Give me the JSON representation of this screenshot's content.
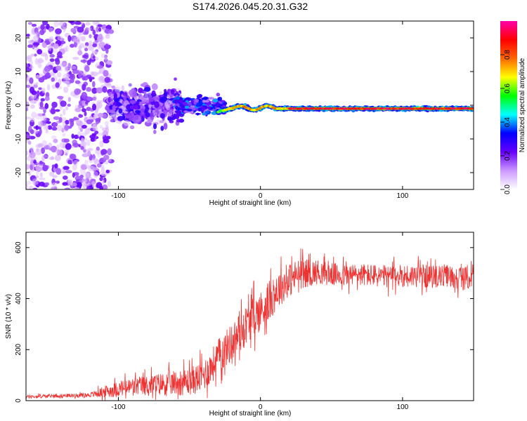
{
  "title": "S174.2026.045.20.31.G32",
  "chart_data": [
    {
      "type": "heatmap",
      "title": "S174.2026.045.20.31.G32",
      "xlabel": "Height of straight line (km)",
      "ylabel": "Frequency (Hz)",
      "xlim": [
        -165,
        150
      ],
      "ylim": [
        -25,
        25
      ],
      "xticks": [
        -100,
        0,
        100
      ],
      "yticks": [
        -20,
        -10,
        0,
        10,
        20
      ],
      "colorbar": {
        "label": "Normalized spectral amplitude",
        "range": [
          0,
          1
        ],
        "ticks": [
          "0.0",
          "0.2",
          "0.4",
          "0.6",
          "0.8"
        ],
        "colors": [
          "#ffffff",
          "#cc99ff",
          "#6600ff",
          "#0000ff",
          "#00ffff",
          "#00ff00",
          "#ffff00",
          "#ff6600",
          "#ff0000",
          "#ff00aa"
        ]
      },
      "regions": [
        {
          "x_range": [
            -165,
            -120
          ],
          "freq_spread_hz": 25,
          "amplitude": "0.1-0.3",
          "description": "scattered noise"
        },
        {
          "x_range": [
            -120,
            -55
          ],
          "freq_spread_hz": 8,
          "amplitude": "0.2-0.4"
        },
        {
          "x_range": [
            -55,
            -25
          ],
          "freq_spread_hz": 4,
          "amplitude": "0.3-0.5"
        },
        {
          "x_range": [
            -25,
            150
          ],
          "freq_center_hz": -1,
          "freq_spread_hz": 1.5,
          "amplitude": "0.8-1.0",
          "description": "narrow coherent band"
        }
      ]
    },
    {
      "type": "line",
      "title": "",
      "xlabel": "Height of straight line (km)",
      "ylabel": "SNR (10 * v/v)",
      "xlim": [
        -165,
        150
      ],
      "ylim": [
        0,
        660
      ],
      "xticks": [
        -100,
        0,
        100
      ],
      "yticks": [
        0,
        200,
        400,
        600
      ],
      "series": [
        {
          "name": "SNR",
          "color": "#ee3333",
          "x": [
            -165,
            -150,
            -135,
            -120,
            -110,
            -100,
            -90,
            -80,
            -70,
            -60,
            -50,
            -45,
            -40,
            -35,
            -30,
            -25,
            -20,
            -15,
            -10,
            -5,
            0,
            5,
            10,
            15,
            20,
            25,
            30,
            35,
            40,
            50,
            60,
            70,
            80,
            90,
            100,
            110,
            120,
            130,
            140,
            150
          ],
          "values": [
            15,
            18,
            20,
            22,
            35,
            45,
            55,
            60,
            65,
            70,
            75,
            85,
            100,
            130,
            170,
            200,
            230,
            260,
            300,
            330,
            350,
            380,
            420,
            450,
            470,
            490,
            500,
            500,
            505,
            495,
            490,
            495,
            490,
            485,
            490,
            490,
            485,
            490,
            480,
            480
          ],
          "noise_amplitude": [
            8,
            8,
            8,
            10,
            25,
            35,
            40,
            45,
            50,
            55,
            60,
            65,
            70,
            75,
            80,
            80,
            85,
            85,
            85,
            90,
            90,
            90,
            85,
            80,
            75,
            70,
            65,
            60,
            55,
            50,
            50,
            50,
            50,
            50,
            50,
            50,
            50,
            50,
            50,
            50
          ]
        }
      ]
    }
  ]
}
